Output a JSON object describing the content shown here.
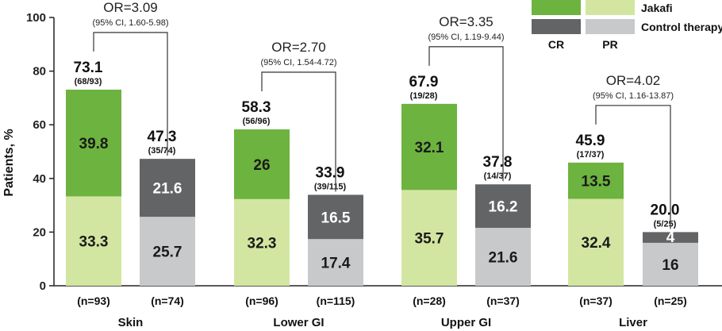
{
  "chart_data": {
    "type": "bar",
    "ylabel": "Patients, %",
    "ylim": [
      0,
      100
    ],
    "yticks": [
      0,
      20,
      40,
      60,
      80,
      100
    ],
    "colors": {
      "jakafi_cr": "#6db33f",
      "jakafi_pr": "#d3e6a1",
      "control_cr": "#636466",
      "control_pr": "#c8c9cb"
    },
    "legend": {
      "position": "top-right",
      "jakafi": "Jakafi",
      "control": "Control therapy",
      "cr": "CR",
      "pr": "PR"
    },
    "groups": [
      {
        "name": "Skin",
        "odds_ratio": "OR=3.09",
        "ci": "(95% CI, 1.60-5.98)",
        "bars": [
          {
            "arm": "Jakafi",
            "pr": 33.3,
            "cr": 39.8,
            "total": "73.1",
            "fraction": "(68/93)",
            "n": "(n=93)"
          },
          {
            "arm": "Control therapy",
            "pr": 25.7,
            "cr": 21.6,
            "total": "47.3",
            "fraction": "(35/74)",
            "n": "(n=74)"
          }
        ]
      },
      {
        "name": "Lower GI",
        "odds_ratio": "OR=2.70",
        "ci": "(95% CI, 1.54-4.72)",
        "bars": [
          {
            "arm": "Jakafi",
            "pr": 32.3,
            "cr": 26.0,
            "total": "58.3",
            "fraction": "(56/96)",
            "n": "(n=96)"
          },
          {
            "arm": "Control therapy",
            "pr": 17.4,
            "cr": 16.5,
            "total": "33.9",
            "fraction": "(39/115)",
            "n": "(n=115)"
          }
        ]
      },
      {
        "name": "Upper GI",
        "odds_ratio": "OR=3.35",
        "ci": "(95% CI, 1.19-9.44)",
        "bars": [
          {
            "arm": "Jakafi",
            "pr": 35.7,
            "cr": 32.1,
            "total": "67.9",
            "fraction": "(19/28)",
            "n": "(n=28)"
          },
          {
            "arm": "Control therapy",
            "pr": 21.6,
            "cr": 16.2,
            "total": "37.8",
            "fraction": "(14/37)",
            "n": "(n=37)"
          }
        ]
      },
      {
        "name": "Liver",
        "odds_ratio": "OR=4.02",
        "ci": "(95% CI, 1.16-13.87)",
        "bars": [
          {
            "arm": "Jakafi",
            "pr": 32.4,
            "cr": 13.5,
            "total": "45.9",
            "fraction": "(17/37)",
            "n": "(n=37)"
          },
          {
            "arm": "Control therapy",
            "pr": 16.0,
            "cr": 4.0,
            "total": "20.0",
            "fraction": "(5/25)",
            "n": "(n=25)"
          }
        ]
      }
    ]
  }
}
